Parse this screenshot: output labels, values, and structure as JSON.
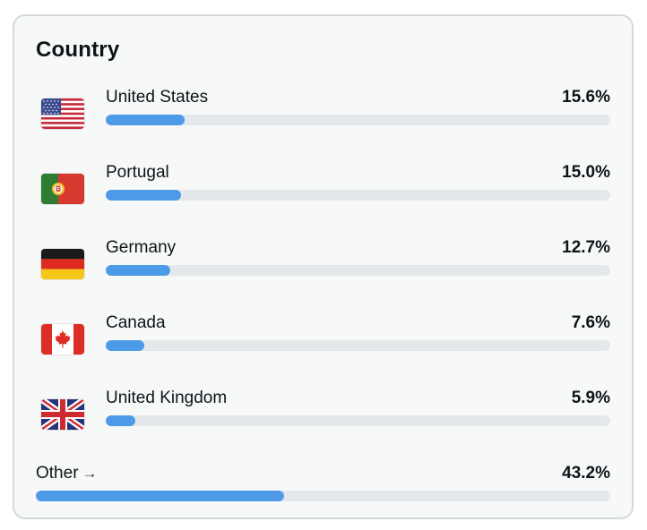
{
  "card": {
    "title": "Country"
  },
  "rows": [
    {
      "country": "United States",
      "percent_label": "15.6%",
      "percent": 15.6,
      "flag_icon": "us-flag-icon"
    },
    {
      "country": "Portugal",
      "percent_label": "15.0%",
      "percent": 15.0,
      "flag_icon": "portugal-flag-icon"
    },
    {
      "country": "Germany",
      "percent_label": "12.7%",
      "percent": 12.7,
      "flag_icon": "germany-flag-icon"
    },
    {
      "country": "Canada",
      "percent_label": "7.6%",
      "percent": 7.6,
      "flag_icon": "canada-flag-icon"
    },
    {
      "country": "United Kingdom",
      "percent_label": "5.9%",
      "percent": 5.9,
      "flag_icon": "uk-flag-icon"
    }
  ],
  "other": {
    "label": "Other",
    "arrow": "→",
    "percent_label": "43.2%",
    "percent": 43.2
  },
  "colors": {
    "bar_fill": "#4d9ae8",
    "bar_track": "#e5e8ea",
    "card_background": "#f7f8f8",
    "card_border": "#d4d9dd"
  }
}
